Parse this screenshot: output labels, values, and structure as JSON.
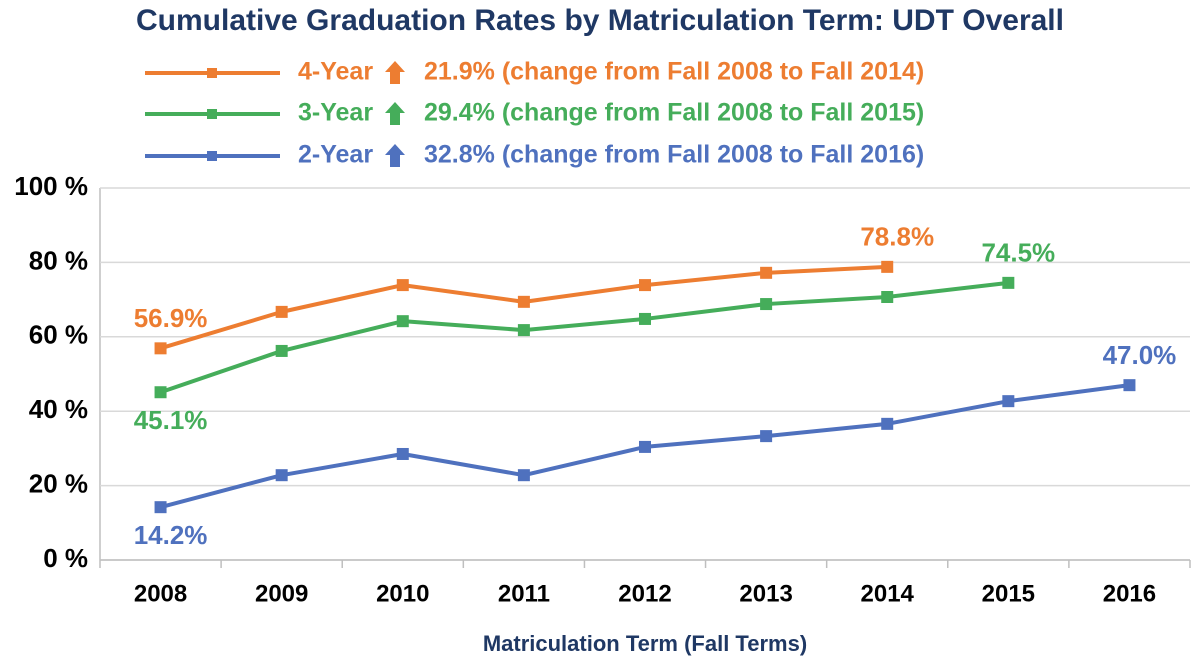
{
  "chart_data": {
    "type": "line",
    "title": "Cumulative Graduation Rates by Matriculation Term: UDT Overall",
    "x_label": "Matriculation Term (Fall Terms)",
    "categories": [
      "2008",
      "2009",
      "2010",
      "2011",
      "2012",
      "2013",
      "2014",
      "2015",
      "2016"
    ],
    "series": [
      {
        "name": "4-Year",
        "color": "#ed7d31",
        "change": "21.9% (change from Fall 2008 to Fall 2014)",
        "values": [
          56.9,
          66.7,
          73.9,
          69.4,
          73.9,
          77.2,
          78.8,
          null,
          null
        ],
        "value_labels": [
          "56.9%",
          null,
          null,
          null,
          null,
          null,
          "78.8%",
          null,
          null
        ]
      },
      {
        "name": "3-Year",
        "color": "#45ad5a",
        "change": "29.4% (change from Fall 2008 to Fall 2015)",
        "values": [
          45.1,
          56.2,
          64.2,
          61.8,
          64.8,
          68.8,
          70.7,
          74.5,
          null
        ],
        "value_labels": [
          "45.1%",
          null,
          null,
          null,
          null,
          null,
          null,
          "74.5%",
          null
        ]
      },
      {
        "name": "2-Year",
        "color": "#4f71be",
        "change": "32.8% (change from Fall 2008 to Fall 2016)",
        "values": [
          14.2,
          22.8,
          28.5,
          22.8,
          30.4,
          33.3,
          36.6,
          42.7,
          47.0
        ],
        "value_labels": [
          "14.2%",
          null,
          null,
          null,
          null,
          null,
          null,
          null,
          "47.0%"
        ]
      }
    ],
    "ylim": [
      0,
      100
    ],
    "yticks": [
      {
        "value": 0,
        "label": "0 %"
      },
      {
        "value": 20,
        "label": "20 %"
      },
      {
        "value": 40,
        "label": "40 %"
      },
      {
        "value": 60,
        "label": "60 %"
      },
      {
        "value": 80,
        "label": "80 %"
      },
      {
        "value": 100,
        "label": "100 %"
      }
    ],
    "grid": true
  }
}
